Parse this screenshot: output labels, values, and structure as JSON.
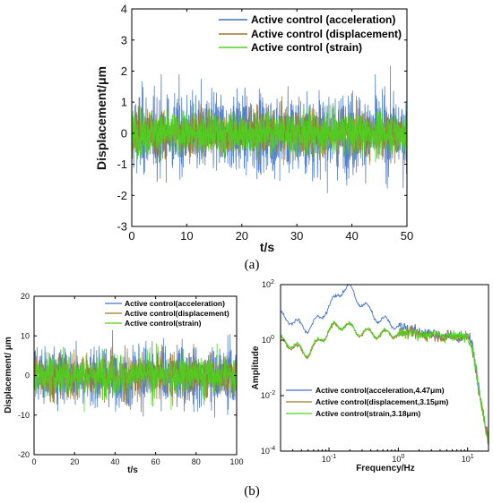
{
  "chart_data": [
    {
      "panel": "a",
      "type": "line",
      "xlabel": "t/s",
      "ylabel": "Displacement/μm",
      "xlim": [
        0,
        50
      ],
      "ylim": [
        -3,
        4
      ],
      "xticks": [
        "0",
        "10",
        "20",
        "30",
        "40",
        "50"
      ],
      "yticks": [
        "-3",
        "-2",
        "-1",
        "0",
        "1",
        "2",
        "3",
        "4"
      ],
      "grid": false,
      "legend_position": "top-right",
      "series": [
        {
          "name": "Active control (acceleration)",
          "color": "#4472c4",
          "amplitude_peak": 2.6
        },
        {
          "name": "Active control (displacement)",
          "color": "#a0782b",
          "amplitude_peak": 1.4
        },
        {
          "name": "Active control (strain)",
          "color": "#4cd31f",
          "amplitude_peak": 1.3
        }
      ],
      "caption": "(a)"
    },
    {
      "panel": "b-left",
      "type": "line",
      "xlabel": "t/s",
      "ylabel": "Displacement/ μm",
      "xlim": [
        0,
        100
      ],
      "ylim": [
        -20,
        20
      ],
      "xticks": [
        "0",
        "20",
        "40",
        "60",
        "80",
        "100"
      ],
      "yticks": [
        "-20",
        "-10",
        "0",
        "10",
        "20"
      ],
      "grid": false,
      "legend_position": "top-right",
      "series": [
        {
          "name": "Active control(acceleration)",
          "color": "#4472c4",
          "amplitude_peak": 17
        },
        {
          "name": "Active control(displacement)",
          "color": "#a0782b",
          "amplitude_peak": 12
        },
        {
          "name": "Active control(strain)",
          "color": "#4cd31f",
          "amplitude_peak": 11
        }
      ]
    },
    {
      "panel": "b-right",
      "type": "line",
      "xlabel": "Frequency/Hz",
      "ylabel": "Amplitude",
      "xscale": "log",
      "yscale": "log",
      "xlim": [
        0.02,
        20
      ],
      "ylim": [
        0.0001,
        100
      ],
      "xticks": [
        "10^-1",
        "10^0",
        "10^1"
      ],
      "yticks": [
        "10^-4",
        "10^-2",
        "10^0",
        "10^2"
      ],
      "grid": false,
      "legend_position": "bottom-left",
      "series": [
        {
          "name": "Active control(acceleration,4.47μm)",
          "color": "#4472c4",
          "x": [
            0.02,
            0.05,
            0.08,
            0.12,
            0.16,
            0.2,
            0.25,
            0.35,
            0.5,
            0.8,
            1.2,
            2,
            4,
            7,
            10,
            12,
            15,
            20
          ],
          "y": [
            8,
            2.5,
            8,
            30,
            70,
            80,
            30,
            15,
            6,
            4,
            3,
            2,
            1.5,
            1.2,
            1.5,
            0.5,
            0.01,
            0.0002
          ]
        },
        {
          "name": "Active control(displacement,3.15μm)",
          "color": "#a0782b",
          "x": [
            0.02,
            0.05,
            0.08,
            0.12,
            0.16,
            0.2,
            0.25,
            0.35,
            0.5,
            0.8,
            1.2,
            2,
            4,
            7,
            10,
            12,
            15,
            20
          ],
          "y": [
            1.0,
            0.3,
            1.2,
            3,
            3.5,
            3,
            2,
            1.8,
            1.6,
            1.7,
            1.8,
            1.6,
            1.4,
            1.2,
            1.5,
            0.4,
            0.008,
            0.0002
          ]
        },
        {
          "name": "Active control(strain,3.18μm)",
          "color": "#4cd31f",
          "x": [
            0.02,
            0.05,
            0.08,
            0.12,
            0.16,
            0.2,
            0.25,
            0.35,
            0.5,
            0.8,
            1.2,
            2,
            4,
            7,
            10,
            12,
            15,
            20
          ],
          "y": [
            1.1,
            0.35,
            1.3,
            3.2,
            3.6,
            3.1,
            2.1,
            1.9,
            1.7,
            1.8,
            1.9,
            1.7,
            1.5,
            1.3,
            1.6,
            0.45,
            0.009,
            0.0002
          ]
        }
      ],
      "caption": "(b)"
    }
  ]
}
